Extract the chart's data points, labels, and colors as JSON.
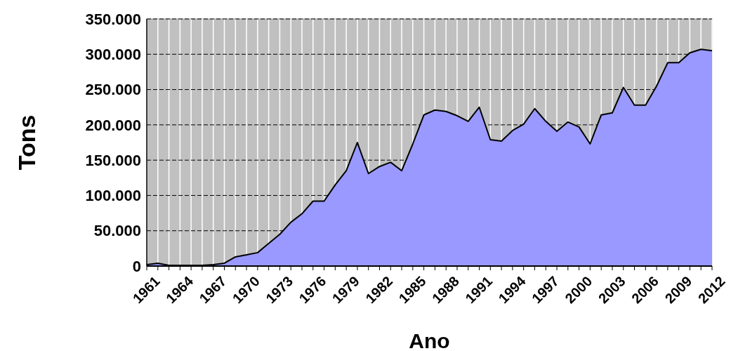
{
  "chart_data": {
    "type": "area",
    "xlabel": "Ano",
    "ylabel": "Tons",
    "categories": [
      "1961",
      null,
      null,
      "1964",
      null,
      null,
      "1967",
      null,
      null,
      "1970",
      null,
      null,
      "1973",
      null,
      null,
      "1976",
      null,
      null,
      "1979",
      null,
      null,
      "1982",
      null,
      null,
      "1985",
      null,
      null,
      "1988",
      null,
      null,
      "1991",
      null,
      null,
      "1994",
      null,
      null,
      "1997",
      null,
      null,
      "2000",
      null,
      null,
      "2003",
      null,
      null,
      "2006",
      null,
      null,
      "2009",
      null,
      null,
      "2012"
    ],
    "series": [
      {
        "color": "#9999ff",
        "values": [
          2000,
          4000,
          1000,
          1000,
          1000,
          1000,
          2000,
          4000,
          13000,
          16000,
          19000,
          32000,
          45000,
          62000,
          74000,
          92000,
          92000,
          115000,
          135000,
          175000,
          131000,
          141000,
          147000,
          135000,
          173000,
          214000,
          221000,
          219000,
          213000,
          205000,
          225000,
          179000,
          177000,
          192000,
          201000,
          223000,
          205000,
          191000,
          204000,
          197000,
          173000,
          214000,
          217000,
          253000,
          228000,
          228000,
          255000,
          288000,
          288000,
          302000,
          307000,
          305000
        ]
      }
    ],
    "ylim": [
      0,
      350000
    ],
    "yticks": [
      0,
      {
        "value": 50000,
        "label": "50.000"
      },
      {
        "value": 100000,
        "label": "100.000"
      },
      {
        "value": 150000,
        "label": "150.000"
      },
      {
        "value": 200000,
        "label": "200.000"
      },
      {
        "value": 250000,
        "label": "250.000"
      },
      {
        "value": 300000,
        "label": "300.000"
      },
      {
        "value": 350000,
        "label": "350.000"
      }
    ],
    "grid": true
  }
}
